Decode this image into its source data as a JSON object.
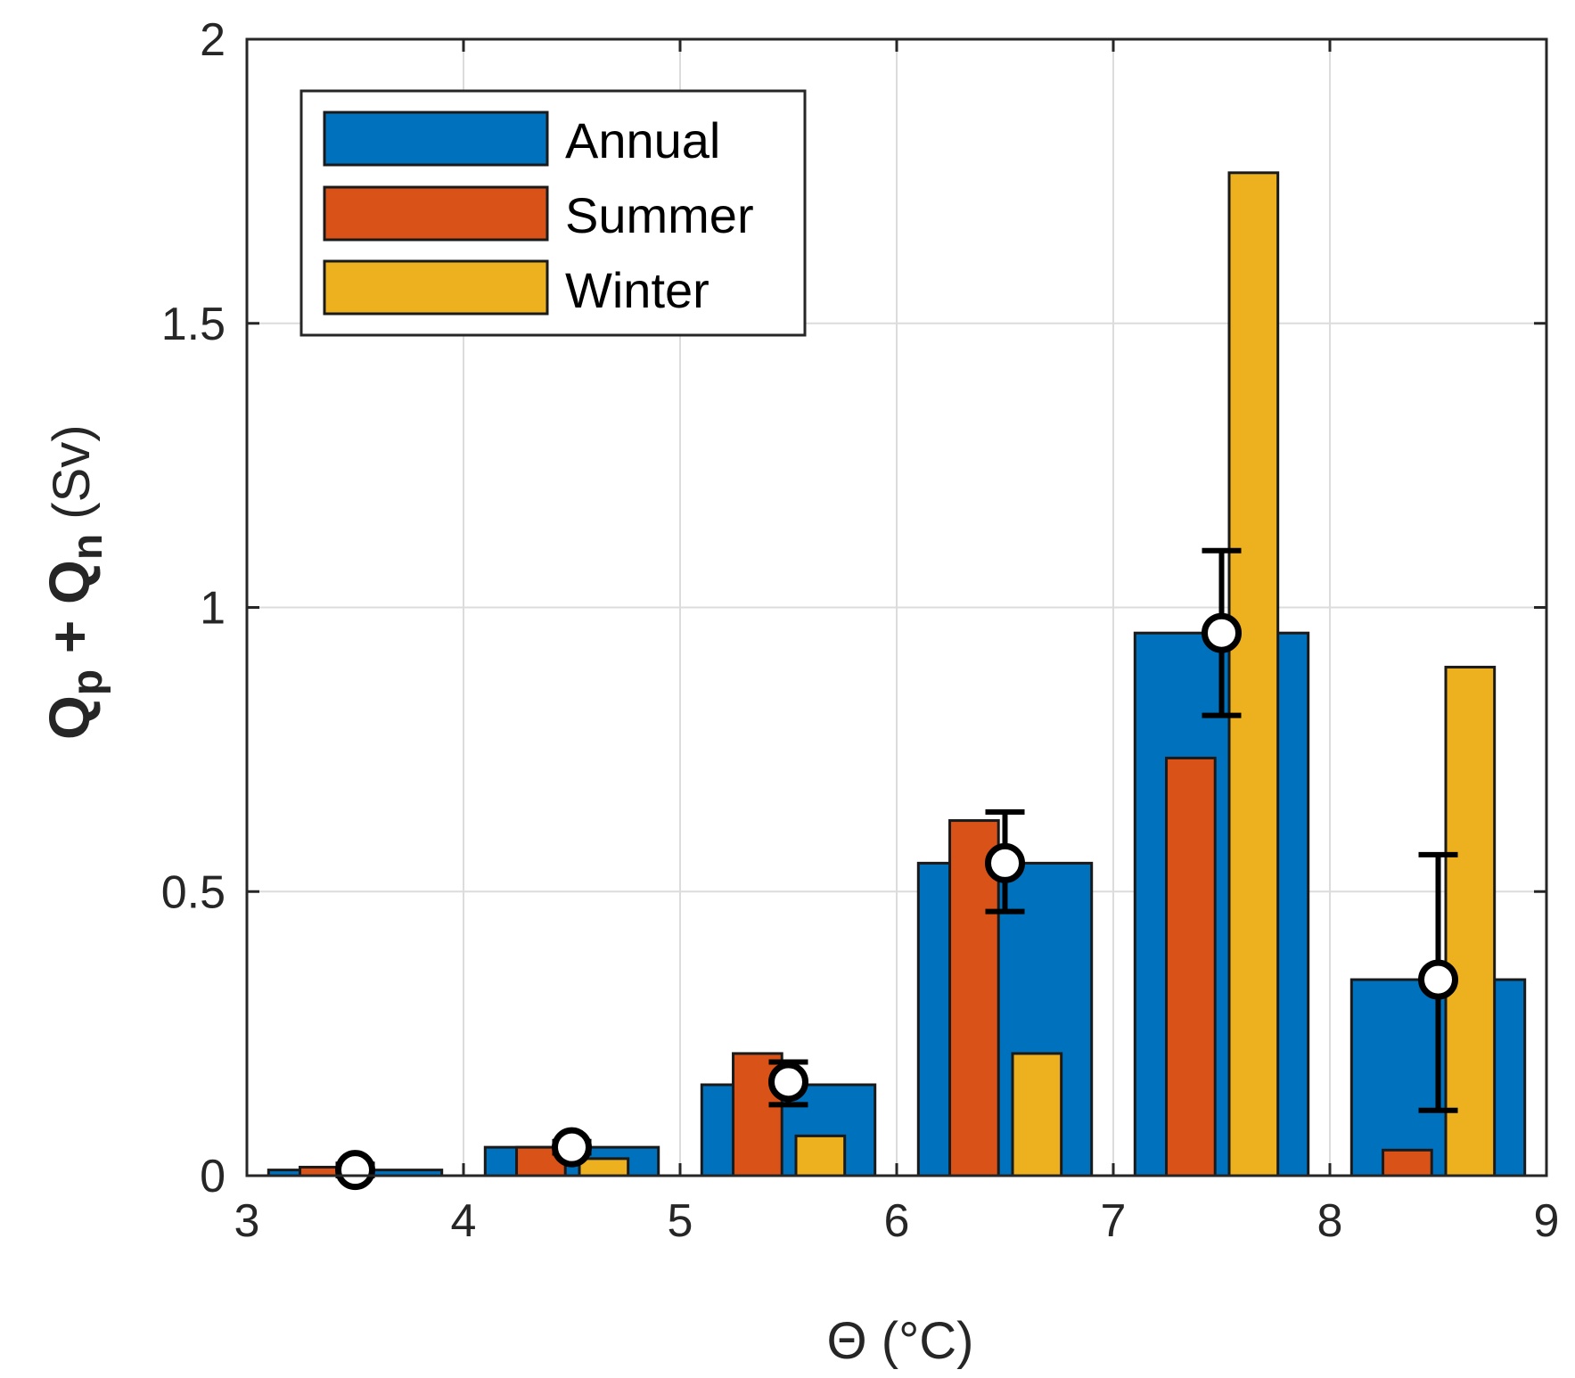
{
  "chart_data": {
    "type": "bar",
    "xlabel": "Θ (°C)",
    "ylabel": {
      "q1": "Q",
      "sub1": "p",
      "plus": " + ",
      "q2": "Q",
      "sub2": "n",
      "unit": " (Sv)"
    },
    "xlim": [
      3,
      9
    ],
    "ylim": [
      0,
      2
    ],
    "grid": true,
    "legend_position": "top-left",
    "xticks": [
      3,
      4,
      5,
      6,
      7,
      8,
      9
    ],
    "xtick_labels": [
      "3",
      "4",
      "5",
      "6",
      "7",
      "8",
      "9"
    ],
    "yticks": [
      0,
      0.5,
      1,
      1.5,
      2
    ],
    "ytick_labels": [
      "0",
      "0.5",
      "1",
      "1.5",
      "2"
    ],
    "bin_edges": [
      [
        3,
        4
      ],
      [
        4,
        5
      ],
      [
        5,
        6
      ],
      [
        6,
        7
      ],
      [
        7,
        8
      ],
      [
        8,
        9
      ]
    ],
    "series": [
      {
        "name": "Annual",
        "color": "#0072BD",
        "values": [
          0.01,
          0.05,
          0.16,
          0.55,
          0.955,
          0.345
        ]
      },
      {
        "name": "Summer",
        "color": "#D95319",
        "values": [
          0.015,
          0.05,
          0.215,
          0.625,
          0.735,
          0.045
        ]
      },
      {
        "name": "Winter",
        "color": "#EDB120",
        "values": [
          0.0,
          0.03,
          0.07,
          0.215,
          1.765,
          0.895
        ]
      }
    ],
    "points": {
      "x": [
        3.5,
        4.5,
        5.5,
        6.5,
        7.5,
        8.5
      ],
      "y": [
        0.01,
        0.05,
        0.165,
        0.55,
        0.955,
        0.345
      ],
      "err_low": [
        0.0,
        0.04,
        0.125,
        0.465,
        0.81,
        0.115
      ],
      "err_high": [
        0.02,
        0.06,
        0.2,
        0.64,
        1.1,
        0.565
      ]
    }
  }
}
